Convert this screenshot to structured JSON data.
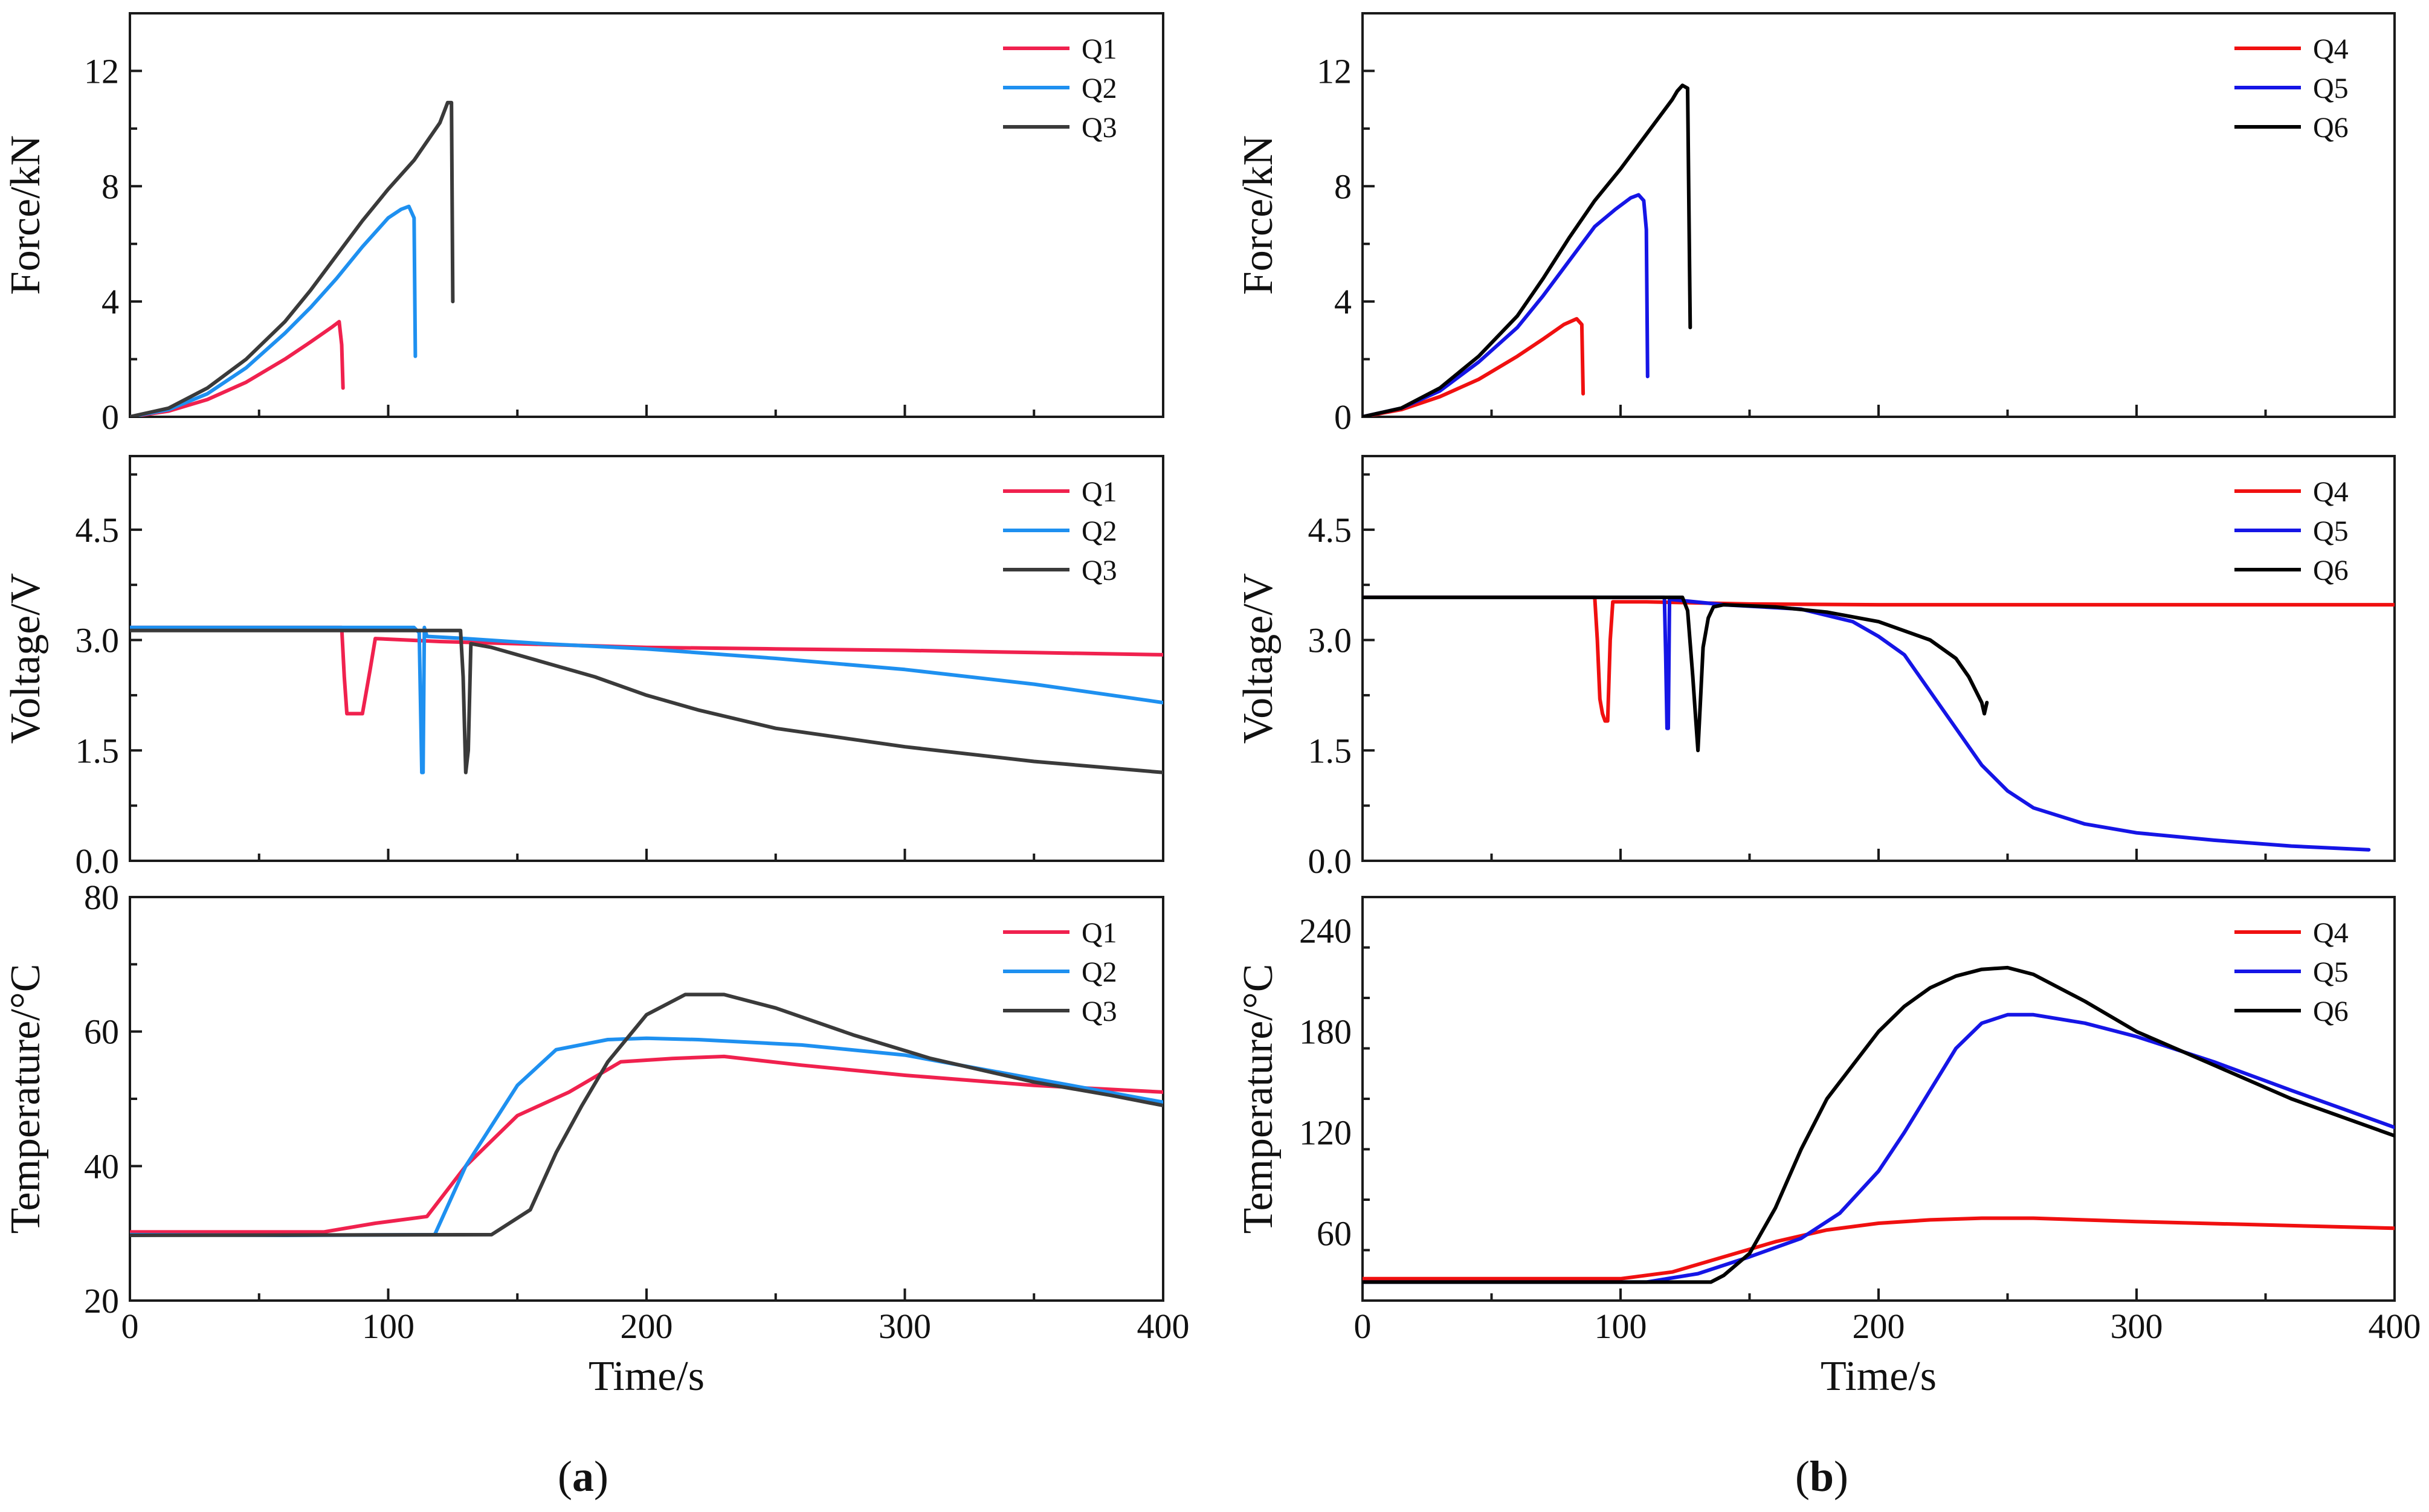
{
  "colors": {
    "Q1": "#f0214e",
    "Q2": "#1e90f0",
    "Q3": "#3a3a3a",
    "Q4": "#f01010",
    "Q5": "#1515e6",
    "Q6": "#000000"
  },
  "panel_labels": {
    "a": "a",
    "b": "b"
  },
  "chart_data": [
    {
      "id": "a-force",
      "type": "line",
      "ylabel": "Force/kN",
      "xlabel": "",
      "xlim": [
        0,
        400
      ],
      "ylim": [
        0,
        14
      ],
      "yticks": [
        0,
        4,
        8,
        12
      ],
      "xticks": [
        0,
        100,
        200,
        300,
        400
      ],
      "show_xtick_labels": false,
      "grid": false,
      "legend": "top-right",
      "series": [
        {
          "name": "Q1",
          "x": [
            0,
            15,
            30,
            45,
            60,
            70,
            78,
            81,
            82,
            82.5
          ],
          "y": [
            0,
            0.2,
            0.6,
            1.2,
            2.0,
            2.6,
            3.1,
            3.3,
            2.5,
            1.0
          ]
        },
        {
          "name": "Q2",
          "x": [
            0,
            15,
            30,
            45,
            60,
            70,
            80,
            90,
            100,
            105,
            108,
            110,
            110.5
          ],
          "y": [
            0,
            0.25,
            0.8,
            1.7,
            2.9,
            3.8,
            4.8,
            5.9,
            6.9,
            7.2,
            7.3,
            6.9,
            2.1
          ]
        },
        {
          "name": "Q3",
          "x": [
            0,
            15,
            30,
            45,
            60,
            70,
            80,
            90,
            100,
            110,
            120,
            123,
            124.5,
            125
          ],
          "y": [
            0,
            0.3,
            1.0,
            2.0,
            3.3,
            4.4,
            5.6,
            6.8,
            7.9,
            8.9,
            10.2,
            10.9,
            10.9,
            4.0
          ]
        }
      ]
    },
    {
      "id": "b-force",
      "type": "line",
      "ylabel": "Force/kN",
      "xlabel": "",
      "xlim": [
        0,
        400
      ],
      "ylim": [
        0,
        14
      ],
      "yticks": [
        0,
        4,
        8,
        12
      ],
      "xticks": [
        0,
        100,
        200,
        300,
        400
      ],
      "show_xtick_labels": false,
      "grid": false,
      "legend": "top-right",
      "series": [
        {
          "name": "Q4",
          "x": [
            0,
            15,
            30,
            45,
            60,
            70,
            78,
            83,
            85,
            85.5
          ],
          "y": [
            0,
            0.25,
            0.7,
            1.3,
            2.1,
            2.7,
            3.2,
            3.4,
            3.2,
            0.8
          ]
        },
        {
          "name": "Q5",
          "x": [
            0,
            15,
            30,
            45,
            60,
            70,
            80,
            90,
            98,
            104,
            107,
            109,
            110,
            110.5
          ],
          "y": [
            0,
            0.3,
            0.9,
            1.9,
            3.1,
            4.2,
            5.4,
            6.6,
            7.2,
            7.6,
            7.7,
            7.5,
            6.5,
            1.4
          ]
        },
        {
          "name": "Q6",
          "x": [
            0,
            15,
            30,
            45,
            60,
            70,
            80,
            90,
            100,
            110,
            120,
            122,
            124,
            126,
            127
          ],
          "y": [
            0,
            0.3,
            1.0,
            2.1,
            3.5,
            4.8,
            6.2,
            7.5,
            8.6,
            9.8,
            11.0,
            11.3,
            11.5,
            11.4,
            3.1
          ]
        }
      ]
    },
    {
      "id": "a-voltage",
      "type": "line",
      "ylabel": "Voltage/V",
      "xlabel": "",
      "xlim": [
        0,
        400
      ],
      "ylim": [
        0,
        5.5
      ],
      "yticks": [
        0.0,
        1.5,
        3.0,
        4.5
      ],
      "ytick_labels": [
        "0.0",
        "1.5",
        "3.0",
        "4.5"
      ],
      "xticks": [
        0,
        100,
        200,
        300,
        400
      ],
      "show_xtick_labels": false,
      "grid": false,
      "legend": "top-right",
      "series": [
        {
          "name": "Q1",
          "x": [
            0,
            82,
            83,
            84,
            88,
            90,
            93,
            95,
            120,
            150,
            200,
            250,
            300,
            350,
            400
          ],
          "y": [
            3.17,
            3.17,
            2.5,
            2.0,
            2.0,
            2.0,
            2.6,
            3.02,
            2.98,
            2.95,
            2.9,
            2.88,
            2.86,
            2.83,
            2.8
          ]
        },
        {
          "name": "Q2",
          "x": [
            0,
            110,
            112,
            113,
            113.5,
            114,
            115,
            130,
            160,
            200,
            250,
            300,
            350,
            400
          ],
          "y": [
            3.17,
            3.17,
            3.1,
            1.2,
            1.2,
            3.17,
            3.05,
            3.02,
            2.95,
            2.88,
            2.75,
            2.6,
            2.4,
            2.15
          ]
        },
        {
          "name": "Q3",
          "x": [
            0,
            128,
            129,
            130,
            131,
            132,
            140,
            160,
            180,
            200,
            220,
            250,
            300,
            350,
            400
          ],
          "y": [
            3.13,
            3.13,
            2.5,
            1.2,
            1.5,
            2.95,
            2.9,
            2.7,
            2.5,
            2.25,
            2.05,
            1.8,
            1.55,
            1.35,
            1.2
          ]
        }
      ]
    },
    {
      "id": "b-voltage",
      "type": "line",
      "ylabel": "Voltage/V",
      "xlabel": "",
      "xlim": [
        0,
        400
      ],
      "ylim": [
        0,
        5.5
      ],
      "yticks": [
        0.0,
        1.5,
        3.0,
        4.5
      ],
      "ytick_labels": [
        "0.0",
        "1.5",
        "3.0",
        "4.5"
      ],
      "xticks": [
        0,
        100,
        200,
        300,
        400
      ],
      "show_xtick_labels": false,
      "grid": false,
      "legend": "top-right",
      "series": [
        {
          "name": "Q4",
          "x": [
            0,
            90,
            91,
            92,
            93,
            94,
            95,
            96,
            97,
            110,
            150,
            200,
            300,
            400
          ],
          "y": [
            3.58,
            3.58,
            3.0,
            2.2,
            2.0,
            1.9,
            1.9,
            3.0,
            3.52,
            3.52,
            3.49,
            3.48,
            3.48,
            3.48
          ]
        },
        {
          "name": "Q5",
          "x": [
            0,
            117,
            117.5,
            118,
            118.5,
            119,
            120,
            140,
            170,
            190,
            200,
            210,
            220,
            230,
            240,
            250,
            260,
            280,
            300,
            330,
            360,
            390
          ],
          "y": [
            3.58,
            3.58,
            2.8,
            1.8,
            1.8,
            3.58,
            3.55,
            3.48,
            3.42,
            3.25,
            3.05,
            2.8,
            2.3,
            1.8,
            1.3,
            0.95,
            0.72,
            0.5,
            0.38,
            0.28,
            0.2,
            0.15
          ]
        },
        {
          "name": "Q6",
          "x": [
            0,
            124,
            126,
            128,
            129,
            130,
            131,
            132,
            134,
            136,
            140,
            160,
            180,
            200,
            220,
            230,
            235,
            240,
            241,
            242
          ],
          "y": [
            3.58,
            3.58,
            3.4,
            2.5,
            2.0,
            1.5,
            2.2,
            2.9,
            3.3,
            3.45,
            3.48,
            3.45,
            3.38,
            3.25,
            3.0,
            2.75,
            2.5,
            2.15,
            2.0,
            2.15
          ]
        }
      ]
    },
    {
      "id": "a-temperature",
      "type": "line",
      "ylabel": "Temperature/°C",
      "xlabel": "Time/s",
      "xlim": [
        0,
        400
      ],
      "ylim": [
        20,
        80
      ],
      "yticks": [
        20,
        40,
        60,
        80
      ],
      "xticks": [
        0,
        100,
        200,
        300,
        400
      ],
      "show_xtick_labels": true,
      "grid": false,
      "legend": "top-right",
      "series": [
        {
          "name": "Q1",
          "x": [
            0,
            75,
            95,
            115,
            130,
            150,
            170,
            190,
            210,
            230,
            260,
            300,
            350,
            400
          ],
          "y": [
            30.2,
            30.2,
            31.5,
            32.5,
            40,
            47.5,
            51,
            55.5,
            56,
            56.3,
            55,
            53.5,
            52,
            51
          ]
        },
        {
          "name": "Q2",
          "x": [
            0,
            60,
            118,
            130,
            150,
            165,
            185,
            200,
            220,
            260,
            300,
            350,
            400
          ],
          "y": [
            29.8,
            29.7,
            29.8,
            40,
            52,
            57.3,
            58.8,
            59,
            58.8,
            58,
            56.5,
            53,
            49.5
          ]
        },
        {
          "name": "Q3",
          "x": [
            0,
            140,
            155,
            165,
            175,
            185,
            200,
            215,
            230,
            250,
            280,
            310,
            350,
            380,
            400
          ],
          "y": [
            29.7,
            29.8,
            33.5,
            42,
            49,
            55.5,
            62.5,
            65.5,
            65.5,
            63.5,
            59.5,
            56,
            52.5,
            50.5,
            49
          ]
        }
      ]
    },
    {
      "id": "b-temperature",
      "type": "line",
      "ylabel": "Temperature/°C",
      "xlabel": "Time/s",
      "xlim": [
        0,
        400
      ],
      "ylim": [
        20,
        260
      ],
      "yticks": [
        60,
        120,
        180,
        240
      ],
      "xticks": [
        0,
        100,
        200,
        300,
        400
      ],
      "show_xtick_labels": true,
      "grid": false,
      "legend": "top-right",
      "series": [
        {
          "name": "Q4",
          "x": [
            0,
            100,
            120,
            140,
            160,
            180,
            200,
            220,
            240,
            260,
            300,
            350,
            400
          ],
          "y": [
            33,
            33,
            37,
            46,
            55,
            62,
            66,
            68,
            69,
            69,
            67,
            65,
            63
          ]
        },
        {
          "name": "Q5",
          "x": [
            0,
            110,
            130,
            150,
            170,
            185,
            200,
            210,
            220,
            230,
            240,
            250,
            260,
            280,
            300,
            330,
            360,
            400
          ],
          "y": [
            31,
            31,
            36,
            46,
            57,
            72,
            97,
            120,
            145,
            170,
            185,
            190,
            190,
            185,
            177,
            162,
            145,
            123
          ]
        },
        {
          "name": "Q6",
          "x": [
            0,
            135,
            140,
            150,
            160,
            170,
            180,
            190,
            200,
            210,
            220,
            230,
            240,
            250,
            260,
            280,
            300,
            330,
            360,
            400
          ],
          "y": [
            31,
            31,
            35,
            48,
            75,
            110,
            140,
            160,
            180,
            195,
            206,
            213,
            217,
            218,
            214,
            198,
            180,
            160,
            140,
            118
          ]
        }
      ]
    }
  ]
}
